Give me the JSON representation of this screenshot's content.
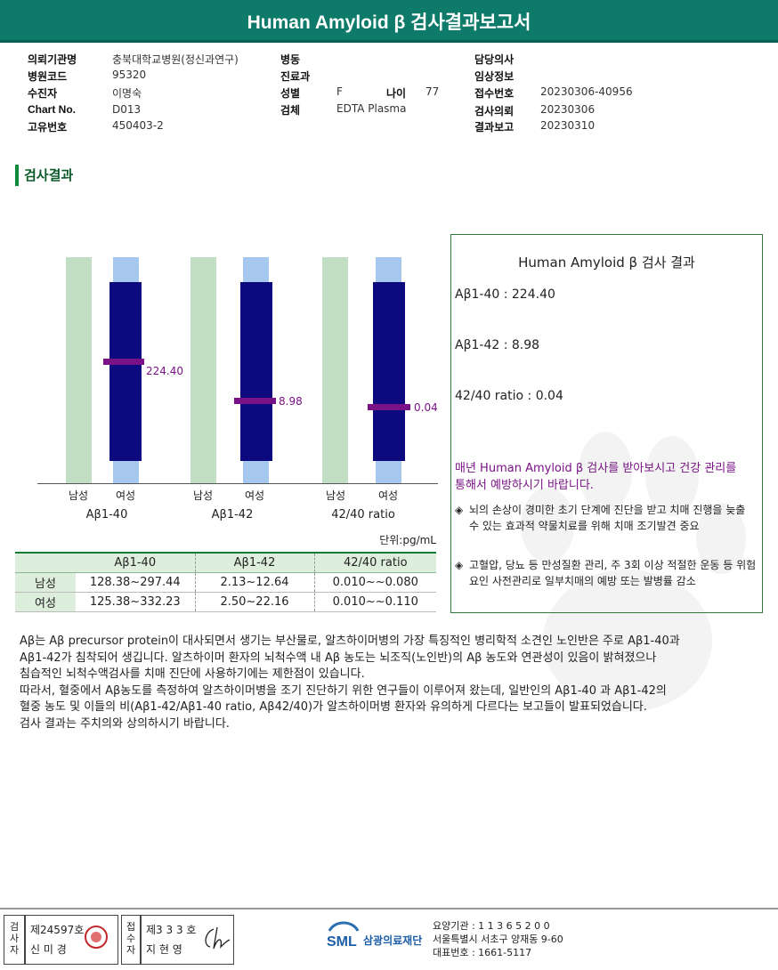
{
  "header": {
    "title": "Human Amyloid β 검사결과보고서"
  },
  "patient": {
    "col1": [
      {
        "label": "의뢰기관명",
        "value": "충북대학교병원(정신과연구)"
      },
      {
        "label": "병원코드",
        "value": "95320"
      },
      {
        "label": "수진자",
        "value": "이명숙"
      },
      {
        "label": "Chart No.",
        "value": "D013"
      },
      {
        "label": "고유번호",
        "value": "450403-2"
      }
    ],
    "col2": [
      {
        "label": "병동",
        "value": ""
      },
      {
        "label": "진료과",
        "value": ""
      },
      {
        "label": "성별",
        "value": "F"
      },
      {
        "label": "검체",
        "value": "EDTA Plasma"
      }
    ],
    "age": {
      "label": "나이",
      "value": "77"
    },
    "col3": [
      {
        "label": "담당의사",
        "value": ""
      },
      {
        "label": "임상정보",
        "value": ""
      },
      {
        "label": "접수번호",
        "value": "20230306-40956"
      },
      {
        "label": "검사의뢰",
        "value": "20230306"
      },
      {
        "label": "결과보고",
        "value": "20230310"
      }
    ]
  },
  "section": {
    "title": "검사결과"
  },
  "chart_data": {
    "type": "bar",
    "groups": [
      {
        "name": "Aβ1-40",
        "male_label": "남성",
        "female_label": "여성",
        "patient_value": 224.4,
        "patient_label": "224.40",
        "male_range": [
          128.38,
          297.44
        ],
        "female_range": [
          125.38,
          332.23
        ]
      },
      {
        "name": "Aβ1-42",
        "male_label": "남성",
        "female_label": "여성",
        "patient_value": 8.98,
        "patient_label": "8.98",
        "male_range": [
          2.13,
          12.64
        ],
        "female_range": [
          2.5,
          22.16
        ]
      },
      {
        "name": "42/40 ratio",
        "male_label": "남성",
        "female_label": "여성",
        "patient_value": 0.04,
        "patient_label": "0.04",
        "male_range": [
          0.01,
          0.08
        ],
        "female_range": [
          0.01,
          0.11
        ]
      }
    ],
    "unit": "단위:pg/mL"
  },
  "range_table": {
    "headers": [
      "",
      "Aβ1-40",
      "Aβ1-42",
      "42/40 ratio"
    ],
    "rows": [
      [
        "남성",
        "128.38~297.44",
        "2.13~12.64",
        "0.010~~0.080"
      ],
      [
        "여성",
        "125.38~332.23",
        "2.50~22.16",
        "0.010~~0.110"
      ]
    ]
  },
  "result_box": {
    "title": "Human Amyloid β 검사 결과",
    "lines": [
      "Aβ1-40 :   224.40",
      "Aβ1-42 :   8.98",
      "42/40 ratio :   0.04"
    ],
    "message": "매년 Human Amyloid β 검사를 받아보시고 건강 관리를 통해서 예방하시기 바랍니다.",
    "bullets": [
      {
        "mark": "◈",
        "text": "뇌의 손상이 경미한 초기 단계에 진단을 받고 치매 진행을 늦출 수 있는 효과적 약물치료를 위해 치매 조기발견 중요"
      },
      {
        "mark": "◈",
        "text": "고혈압, 당뇨 등 만성질환 관리, 주 3회 이상 적절한 운동 등 위험요인 사전관리로 일부치매의 예방 또는 발병률 감소"
      }
    ]
  },
  "description": [
    "Aβ는 Aβ precursor protein이 대사되면서 생기는 부산물로, 알츠하이머병의 가장 특징적인 병리학적 소견인 노인반은 주로 Aβ1-40과",
    "Aβ1-42가 침착되어 생깁니다. 알츠하이머 환자의 뇌척수액 내 Aβ 농도는 뇌조직(노인반)의 Aβ 농도와 연관성이 있음이 밝혀졌으나",
    "침습적인 뇌척수액검사를 치매 진단에 사용하기에는 제한점이 있습니다.",
    "따라서, 혈중에서 Aβ농도를 측정하여 알츠하이머병을 조기 진단하기 위한 연구들이 이루어져 왔는데, 일반인의 Aβ1-40 과 Aβ1-42의",
    "혈중 농도 및 이들의 비(Aβ1-42/Aβ1-40 ratio, Aβ42/40)가 알츠하이머병 환자와 유의하게 다르다는 보고들이 발표되었습니다.",
    "검사 결과는 주치의와 상의하시기 바랍니다."
  ],
  "footer": {
    "tester_label": "검사자",
    "tester_no": "제24597호",
    "tester_name": "신 미 경",
    "reviewer_label": "접수자",
    "reviewer_no": "제3 3 3 호",
    "reviewer_name": "지 현 영",
    "logo_text": "SML",
    "logo_org": "삼광의료재단",
    "lab_lines": [
      "요양기관 : 1 1 3 6 5 2 0 0",
      "서울특별시 서초구 양재동 9-60",
      "대표번호 : 1661-5117"
    ]
  },
  "colors": {
    "header": "#0e7a6a",
    "navy": "#0d0a80",
    "marker": "#7a1287",
    "normal_green": "#c2dfc6",
    "normal_blue": "#a7c8ee"
  }
}
